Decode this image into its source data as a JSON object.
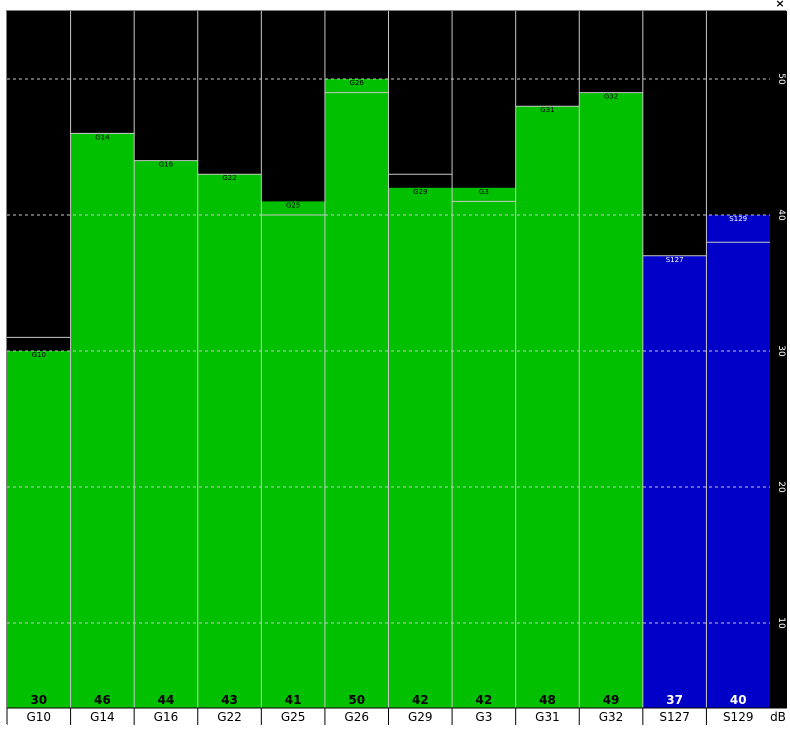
{
  "window": {
    "close_glyph": "×"
  },
  "chart_data": {
    "type": "bar",
    "categories": [
      "G10",
      "G14",
      "G16",
      "G22",
      "G25",
      "G26",
      "G29",
      "G3",
      "G31",
      "G32",
      "S127",
      "S129"
    ],
    "values": [
      30,
      46,
      44,
      43,
      41,
      50,
      42,
      42,
      48,
      49,
      37,
      40
    ],
    "secondary_values": [
      31,
      46,
      44,
      43,
      40,
      49,
      43,
      41,
      48,
      49,
      37,
      38
    ],
    "bar_tags": [
      "G10",
      "G14",
      "G16",
      "G22",
      "G25",
      "G26",
      "G29",
      "G3",
      "G31",
      "G32",
      "S127",
      "S129"
    ],
    "bar_colors": [
      "#00c000",
      "#00c000",
      "#00c000",
      "#00c000",
      "#00c000",
      "#00c000",
      "#00c000",
      "#00c000",
      "#00c000",
      "#00c000",
      "#0000c8",
      "#0000c8"
    ],
    "colors": {
      "background": "#000000",
      "gps": "#00c000",
      "sbas": "#0000c8",
      "grid": "#c8c8c8",
      "text": "#000000",
      "text_sbas": "#ffffff"
    },
    "y_ticks": [
      10,
      20,
      30,
      40,
      50
    ],
    "ylim": [
      5,
      55
    ],
    "ylabel": "dB",
    "grid": true
  }
}
